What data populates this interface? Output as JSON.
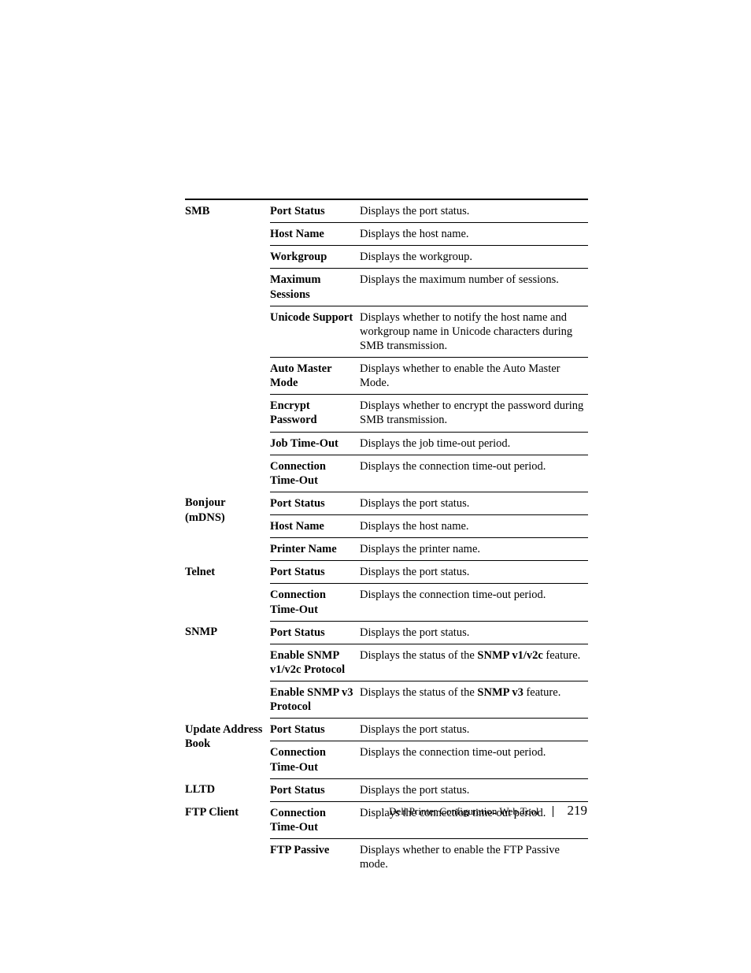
{
  "footer": {
    "title": "Dell Printer Configuration Web Tool",
    "page": "219"
  },
  "table": {
    "sections": [
      {
        "category": "SMB",
        "rows": [
          {
            "param": "Port Status",
            "desc": "Displays the port status."
          },
          {
            "param": "Host Name",
            "desc": "Displays the host name."
          },
          {
            "param": "Workgroup",
            "desc": "Displays the workgroup."
          },
          {
            "param": "Maximum Sessions",
            "desc": "Displays the maximum number of sessions."
          },
          {
            "param": "Unicode Support",
            "desc": "Displays whether to notify the host name and workgroup name in Unicode characters during SMB transmission."
          },
          {
            "param": "Auto Master Mode",
            "desc": "Displays whether to enable the Auto Master Mode."
          },
          {
            "param": "Encrypt Password",
            "desc": "Displays whether to encrypt the password during SMB transmission."
          },
          {
            "param": "Job Time-Out",
            "desc": "Displays the job time-out period."
          },
          {
            "param": "Connection Time-Out",
            "desc": "Displays the connection time-out period."
          }
        ]
      },
      {
        "category": "Bonjour (mDNS)",
        "rows": [
          {
            "param": "Port Status",
            "desc": "Displays the port status."
          },
          {
            "param": "Host Name",
            "desc": "Displays the host name."
          },
          {
            "param": "Printer Name",
            "desc": "Displays the printer name."
          }
        ]
      },
      {
        "category": "Telnet",
        "rows": [
          {
            "param": "Port Status",
            "desc": "Displays the port status."
          },
          {
            "param": "Connection Time-Out",
            "desc": "Displays the connection time-out period."
          }
        ]
      },
      {
        "category": "SNMP",
        "rows": [
          {
            "param": "Port Status",
            "desc": "Displays the port status."
          },
          {
            "param": "Enable SNMP v1/v2c Protocol",
            "desc_parts": [
              "Displays the status of the ",
              {
                "bold": "SNMP v1/v2c"
              },
              " feature."
            ]
          },
          {
            "param": "Enable SNMP v3 Protocol",
            "desc_parts": [
              "Displays the status of the ",
              {
                "bold": "SNMP v3"
              },
              " feature."
            ]
          }
        ]
      },
      {
        "category": "Update Address Book",
        "rows": [
          {
            "param": "Port Status",
            "desc": "Displays the port status."
          },
          {
            "param": "Connection Time-Out",
            "desc": "Displays the connection time-out period."
          }
        ]
      },
      {
        "category": "LLTD",
        "rows": [
          {
            "param": "Port Status",
            "desc": "Displays the port status."
          }
        ]
      },
      {
        "category": "FTP Client",
        "rows": [
          {
            "param": "Connection Time-Out",
            "desc": "Displays the connection time-out period."
          },
          {
            "param": "FTP Passive",
            "desc": "Displays whether to enable the FTP Passive mode."
          }
        ]
      }
    ]
  }
}
